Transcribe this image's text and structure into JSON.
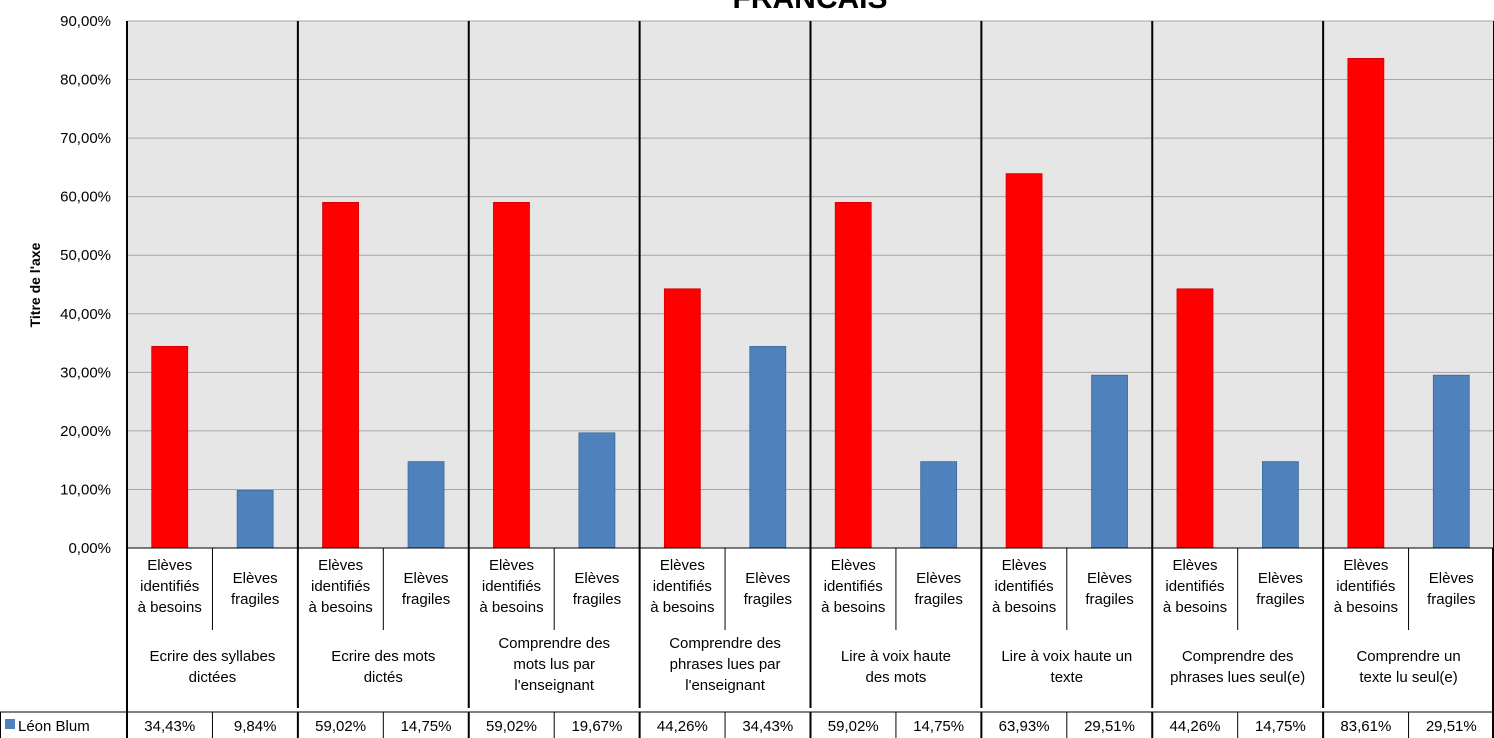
{
  "chart_data": {
    "type": "bar",
    "title": "FRANCAIS",
    "ylabel": "Titre de l'axe",
    "ylim": [
      0,
      90
    ],
    "y_ticks": [
      "0,00%",
      "10,00%",
      "20,00%",
      "30,00%",
      "40,00%",
      "50,00%",
      "60,00%",
      "70,00%",
      "80,00%",
      "90,00%"
    ],
    "grid": true,
    "colors": {
      "identified": "#ff0000",
      "fragile": "#4f81bd",
      "axis": "#000000",
      "grid": "#a6a6a6",
      "plot_bg": "#e6e6e6"
    },
    "groups": [
      {
        "label": [
          "Ecrire des syllabes",
          "dictées"
        ]
      },
      {
        "label": [
          "Ecrire des mots",
          "dictés"
        ]
      },
      {
        "label": [
          "Comprendre des",
          "mots lus par",
          "l'enseignant"
        ]
      },
      {
        "label": [
          "Comprendre des",
          "phrases lues par",
          "l'enseignant"
        ]
      },
      {
        "label": [
          "Lire à voix haute",
          "des mots"
        ]
      },
      {
        "label": [
          "Lire à voix haute un",
          "texte"
        ]
      },
      {
        "label": [
          "Comprendre des",
          "phrases lues seul(e)"
        ]
      },
      {
        "label": [
          "Comprendre un",
          "texte lu seul(e)"
        ]
      }
    ],
    "subcategories": [
      [
        "Elèves",
        "identifiés",
        "à besoins"
      ],
      [
        "Elèves",
        "fragiles"
      ]
    ],
    "series": [
      {
        "name": "Léon Blum",
        "values": [
          34.43,
          9.84,
          59.02,
          14.75,
          59.02,
          19.67,
          44.26,
          34.43,
          59.02,
          14.75,
          63.93,
          29.51,
          44.26,
          14.75,
          83.61,
          29.51
        ],
        "labels": [
          "34,43%",
          "9,84%",
          "59,02%",
          "14,75%",
          "59,02%",
          "19,67%",
          "44,26%",
          "34,43%",
          "59,02%",
          "14,75%",
          "63,93%",
          "29,51%",
          "44,26%",
          "14,75%",
          "83,61%",
          "29,51%"
        ]
      }
    ]
  }
}
